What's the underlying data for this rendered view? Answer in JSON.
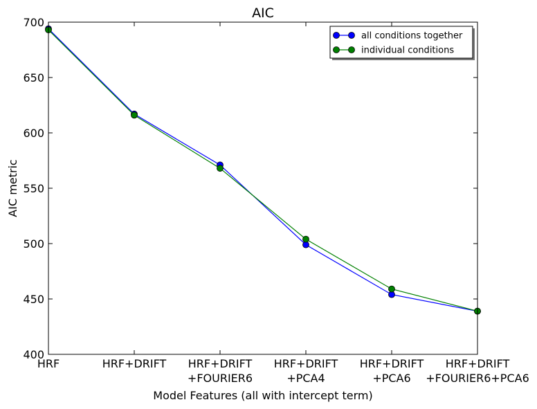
{
  "chart_data": {
    "type": "line",
    "title": "AIC",
    "xlabel": "Model Features (all with intercept term)",
    "ylabel": "AIC metric",
    "categories": [
      [
        "HRF"
      ],
      [
        "HRF+DRIFT"
      ],
      [
        "HRF+DRIFT",
        "+FOURIER6"
      ],
      [
        "HRF+DRIFT",
        "+PCA4"
      ],
      [
        "HRF+DRIFT",
        "+PCA6"
      ],
      [
        "HRF+DRIFT",
        "+FOURIER6+PCA6"
      ]
    ],
    "ylim": [
      400,
      700
    ],
    "yticks": [
      "400",
      "450",
      "500",
      "550",
      "600",
      "650",
      "700"
    ],
    "grid": false,
    "legend_position": "top-right",
    "series": [
      {
        "name": "all conditions together",
        "color": "#0000ff",
        "values": [
          694,
          617,
          571,
          499,
          454,
          439
        ]
      },
      {
        "name": "individual conditions",
        "color": "#008000",
        "values": [
          693,
          616,
          568,
          504,
          459,
          439
        ]
      }
    ]
  }
}
